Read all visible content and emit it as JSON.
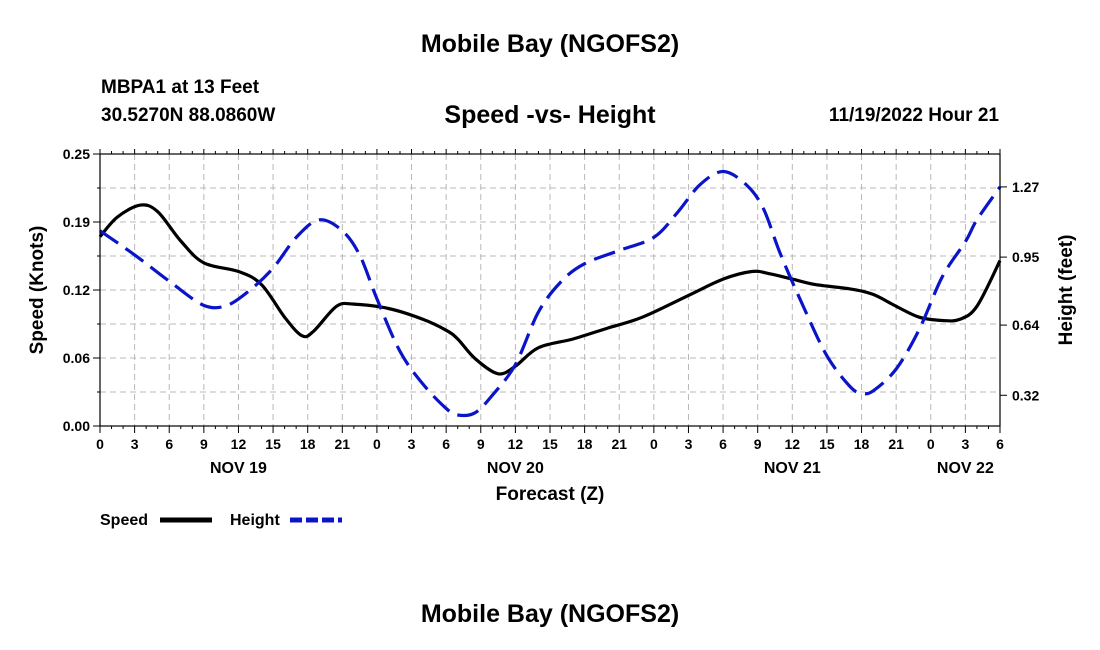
{
  "page": {
    "title": "Mobile Bay (NGOFS2)",
    "footer_title": "Mobile Bay (NGOFS2)"
  },
  "header": {
    "station": "MBPA1 at 13 Feet",
    "coords": "30.5270N  88.0860W",
    "chart_title": "Speed -vs- Height",
    "forecast_time": "11/19/2022 Hour 21"
  },
  "chart_data": {
    "type": "line",
    "title": "Speed -vs- Height",
    "xlabel": "Forecast (Z)",
    "ylabel": "Speed (Knots)",
    "y2label": "Height (feet)",
    "xlim": [
      0,
      78
    ],
    "x_unit": "hours from Nov 19 00Z",
    "ylim": [
      0,
      0.25
    ],
    "y2lim": [
      0.18,
      1.42
    ],
    "y_ticks": [
      "0.00",
      "0.06",
      "0.12",
      "0.19",
      "0.25"
    ],
    "y_tick_values": [
      0,
      0.0625,
      0.125,
      0.1875,
      0.25
    ],
    "y2_ticks": [
      "0.32",
      "0.64",
      "0.95",
      "1.27"
    ],
    "y2_tick_values": [
      0.32,
      0.64,
      0.95,
      1.27
    ],
    "x_tick_labels": [
      "0",
      "3",
      "6",
      "9",
      "12",
      "15",
      "18",
      "21",
      "0",
      "3",
      "6",
      "9",
      "12",
      "15",
      "18",
      "21",
      "0",
      "3",
      "6",
      "9",
      "12",
      "15",
      "18",
      "21",
      "0",
      "3",
      "6"
    ],
    "day_labels": [
      {
        "label": "NOV 19",
        "hour": 12
      },
      {
        "label": "NOV 20",
        "hour": 36
      },
      {
        "label": "NOV 21",
        "hour": 60
      },
      {
        "label": "NOV 22",
        "hour": 75
      }
    ],
    "grid": true,
    "legend_position": "bottom-left",
    "series": [
      {
        "name": "Speed",
        "axis": "left",
        "color": "#000000",
        "style": "solid",
        "points": [
          [
            0,
            0.174
          ],
          [
            1.5,
            0.192
          ],
          [
            3.5,
            0.203
          ],
          [
            5,
            0.197
          ],
          [
            7,
            0.17
          ],
          [
            9,
            0.15
          ],
          [
            12,
            0.142
          ],
          [
            14,
            0.13
          ],
          [
            16,
            0.1
          ],
          [
            17.5,
            0.083
          ],
          [
            18.5,
            0.087
          ],
          [
            20.5,
            0.11
          ],
          [
            22,
            0.112
          ],
          [
            25,
            0.108
          ],
          [
            28,
            0.098
          ],
          [
            30,
            0.088
          ],
          [
            31,
            0.08
          ],
          [
            32.5,
            0.062
          ],
          [
            34.5,
            0.048
          ],
          [
            36,
            0.055
          ],
          [
            38,
            0.072
          ],
          [
            41,
            0.08
          ],
          [
            44,
            0.09
          ],
          [
            47,
            0.1
          ],
          [
            51,
            0.12
          ],
          [
            54,
            0.135
          ],
          [
            56.5,
            0.142
          ],
          [
            58,
            0.14
          ],
          [
            60,
            0.135
          ],
          [
            62,
            0.13
          ],
          [
            65,
            0.126
          ],
          [
            67,
            0.121
          ],
          [
            69,
            0.11
          ],
          [
            71,
            0.1
          ],
          [
            73,
            0.097
          ],
          [
            74.5,
            0.098
          ],
          [
            76,
            0.11
          ],
          [
            78,
            0.152
          ]
        ]
      },
      {
        "name": "Height",
        "axis": "right",
        "color": "#0a14c8",
        "style": "dashed",
        "points": [
          [
            0,
            1.07
          ],
          [
            3,
            0.96
          ],
          [
            6,
            0.84
          ],
          [
            9,
            0.73
          ],
          [
            11,
            0.73
          ],
          [
            13,
            0.8
          ],
          [
            15,
            0.9
          ],
          [
            17,
            1.04
          ],
          [
            19,
            1.12
          ],
          [
            21,
            1.07
          ],
          [
            22.5,
            0.96
          ],
          [
            24,
            0.76
          ],
          [
            26,
            0.52
          ],
          [
            28,
            0.37
          ],
          [
            30,
            0.26
          ],
          [
            31,
            0.23
          ],
          [
            32.5,
            0.24
          ],
          [
            34,
            0.32
          ],
          [
            36,
            0.46
          ],
          [
            38,
            0.7
          ],
          [
            40,
            0.84
          ],
          [
            42,
            0.92
          ],
          [
            45,
            0.98
          ],
          [
            48,
            1.04
          ],
          [
            50,
            1.15
          ],
          [
            52,
            1.28
          ],
          [
            54,
            1.34
          ],
          [
            56,
            1.28
          ],
          [
            57.5,
            1.17
          ],
          [
            59,
            0.96
          ],
          [
            61,
            0.72
          ],
          [
            63,
            0.5
          ],
          [
            65,
            0.36
          ],
          [
            66,
            0.33
          ],
          [
            67,
            0.34
          ],
          [
            69,
            0.44
          ],
          [
            71,
            0.62
          ],
          [
            73,
            0.86
          ],
          [
            75,
            1.02
          ],
          [
            76,
            1.12
          ],
          [
            78,
            1.27
          ]
        ]
      }
    ]
  }
}
